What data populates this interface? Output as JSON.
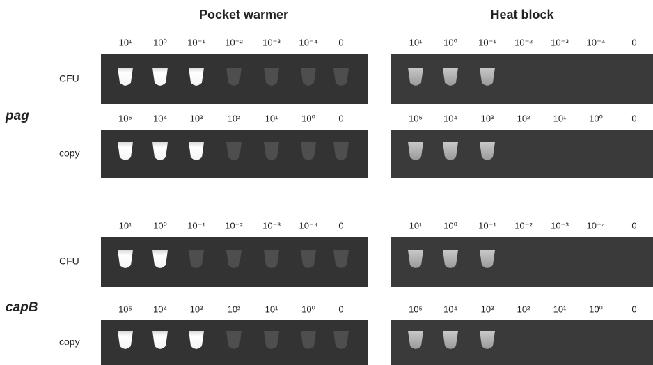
{
  "headers": [
    "Pocket warmer",
    "Heat block"
  ],
  "genes": [
    {
      "name": "pag",
      "rows": [
        {
          "label": "CFU",
          "dilutions": [
            [
              "10¹",
              "10⁰",
              "10⁻¹",
              "10⁻²",
              "10⁻³",
              "10⁻⁴",
              "0"
            ],
            [
              "10¹",
              "10⁰",
              "10⁻¹",
              "10⁻²",
              "10⁻³",
              "10⁻⁴",
              "0"
            ]
          ]
        },
        {
          "label": "copy",
          "dilutions": [
            [
              "10⁵",
              "10⁴",
              "10³",
              "10²",
              "10¹",
              "10⁰",
              "0"
            ],
            [
              "10⁵",
              "10⁴",
              "10³",
              "10²",
              "10¹",
              "10⁰",
              "0"
            ]
          ]
        }
      ]
    },
    {
      "name": "capB",
      "rows": [
        {
          "label": "CFU",
          "dilutions": [
            [
              "10¹",
              "10⁰",
              "10⁻¹",
              "10⁻²",
              "10⁻³",
              "10⁻⁴",
              "0"
            ],
            [
              "10¹",
              "10⁰",
              "10⁻¹",
              "10⁻²",
              "10⁻³",
              "10⁻⁴",
              "0"
            ]
          ]
        },
        {
          "label": "copy",
          "dilutions": [
            [
              "10⁵",
              "10⁴",
              "10³",
              "10²",
              "10¹",
              "10⁰",
              "0"
            ],
            [
              "10⁵",
              "10⁴",
              "10³",
              "10²",
              "10¹",
              "10⁰",
              "0"
            ]
          ]
        }
      ]
    }
  ]
}
